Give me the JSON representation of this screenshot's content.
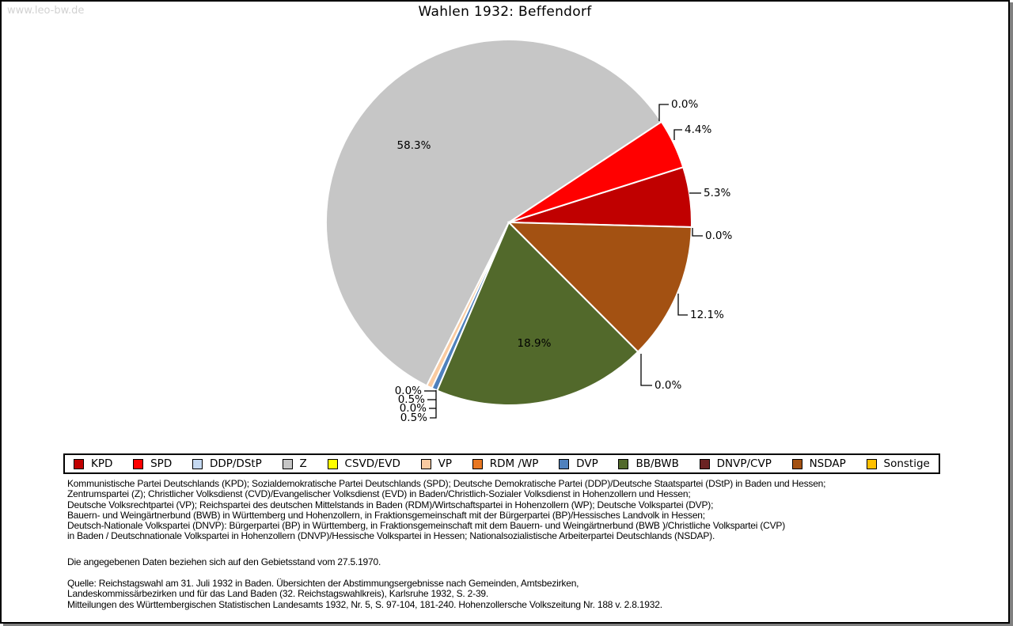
{
  "watermark": "www.leo-bw.de",
  "title": "Wahlen 1932: Beffendorf",
  "chart_data": {
    "type": "pie",
    "title": "Wahlen 1932: Beffendorf",
    "unit": "percent",
    "start_angle_deg_clockwise_from_top": 91.5,
    "direction": "counterclockwise",
    "legend_position": "bottom",
    "slices": [
      {
        "party": "KPD",
        "value": 5.3,
        "label": "5.3%",
        "color": "#C00000"
      },
      {
        "party": "SPD",
        "value": 4.4,
        "label": "4.4%",
        "color": "#FF0000"
      },
      {
        "party": "DDP/DStP",
        "value": 0.0,
        "label": "0.0%",
        "color": "#C5D9F1"
      },
      {
        "party": "Z",
        "value": 58.3,
        "label": "58.3%",
        "color": "#C6C6C6"
      },
      {
        "party": "CSVD/EVD",
        "value": 0.0,
        "label": "0.0%",
        "color": "#FFFF00"
      },
      {
        "party": "VP",
        "value": 0.5,
        "label": "0.5%",
        "color": "#FACBA1"
      },
      {
        "party": "RDM /WP",
        "value": 0.0,
        "label": "0.0%",
        "color": "#E87722"
      },
      {
        "party": "DVP",
        "value": 0.5,
        "label": "0.5%",
        "color": "#4F81BD"
      },
      {
        "party": "BB/BWB",
        "value": 18.9,
        "label": "18.9%",
        "color": "#52692B"
      },
      {
        "party": "DNVP/CVP",
        "value": 0.0,
        "label": "0.0%",
        "color": "#6B2323"
      },
      {
        "party": "NSDAP",
        "value": 12.1,
        "label": "12.1%",
        "color": "#A35112"
      },
      {
        "party": "Sonstige",
        "value": 0.0,
        "label": "0.0%",
        "color": "#FFC000"
      }
    ]
  },
  "footer": {
    "party_explanations": [
      "Kommunistische Partei Deutschlands (KPD); Sozialdemokratische Partei Deutschlands (SPD); Deutsche Demokratische Partei (DDP)/Deutsche Staatspartei (DStP) in Baden und Hessen;",
      "Zentrumspartei (Z); Christlicher Volksdienst (CVD)/Evangelischer Volksdienst (EVD) in Baden/Christlich-Sozialer Volksdienst in Hohenzollern und Hessen;",
      "Deutsche Volksrechtpartei (VP); Reichspartei des deutschen Mittelstands in Baden (RDM)/Wirtschaftspartei in Hohenzollern (WP); Deutsche Volkspartei (DVP);",
      "Bauern- und Weingärtnerbund (BWB) in Württemberg und Hohenzollern, in Fraktionsgemeinschaft mit der Bürgerpartei (BP)/Hessisches Landvolk in Hessen;",
      "Deutsch-Nationale Volkspartei (DNVP): Bürgerpartei (BP) in Württemberg, in Fraktionsgemeinschaft mit dem Bauern- und Weingärtnerbund (BWB )/Christliche Volkspartei (CVP)",
      "in Baden / Deutschnationale Volkspartei in Hohenzollern (DNVP)/Hessische Volkspartei in Hessen; Nationalsozialistische Arbeiterpartei Deutschlands (NSDAP)."
    ],
    "note": "Die angegebenen Daten beziehen sich auf den Gebietsstand vom 27.5.1970.",
    "source": [
      "Quelle: Reichstagswahl am 31. Juli 1932 in Baden. Übersichten der Abstimmungsergebnisse nach Gemeinden, Amtsbezirken,",
      "Landeskommissärbezirken und für das Land Baden (32. Reichstagswahlkreis), Karlsruhe 1932, S. 2-39.",
      "Mitteilungen des Württembergischen Statistischen Landesamts 1932, Nr. 5, S. 97-104, 181-240. Hohenzollersche Volkszeitung Nr. 188 v. 2.8.1932."
    ]
  }
}
